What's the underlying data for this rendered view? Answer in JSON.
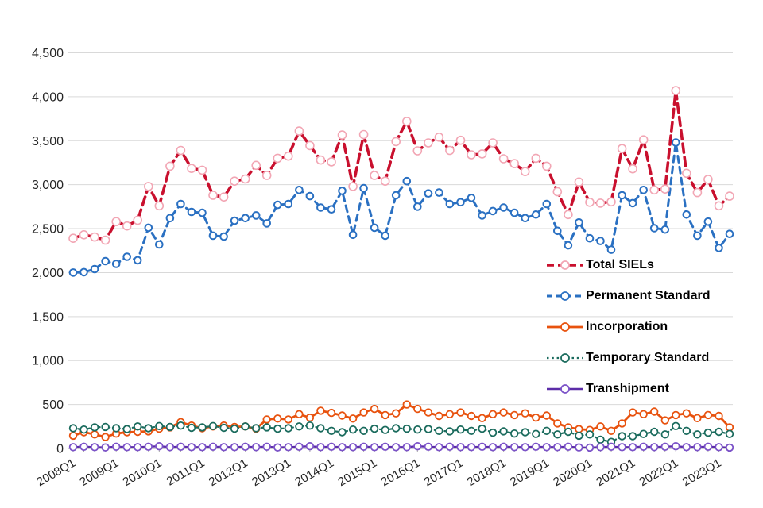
{
  "chart_data": {
    "type": "line",
    "title": "",
    "xlabel": "",
    "ylabel": "",
    "ylim": [
      0,
      4500
    ],
    "y_tick_step": 500,
    "y_tick_labels": [
      "0",
      "500",
      "1,000",
      "1,500",
      "2,000",
      "2,500",
      "3,000",
      "3,500",
      "4,000",
      "4,500"
    ],
    "x_tick_labels": [
      "2008Q1",
      "2009Q1",
      "2010Q1",
      "2011Q1",
      "2012Q1",
      "2013Q1",
      "2014Q1",
      "2015Q1",
      "2016Q1",
      "2017Q1",
      "2018Q1",
      "2019Q1",
      "2020Q1",
      "2021Q1",
      "2022Q1",
      "2023Q1"
    ],
    "x_tick_every": 4,
    "points_count": 62,
    "grid": true,
    "legend_position": "inside-right",
    "series": [
      {
        "name": "Total SIELs",
        "color": "#c9102e",
        "marker_color": "#f2a6b4",
        "dash": "long-dash",
        "width": 3.6,
        "values": [
          2390,
          2430,
          2405,
          2370,
          2580,
          2530,
          2595,
          2980,
          2760,
          3210,
          3390,
          3185,
          3165,
          2880,
          2860,
          3040,
          3065,
          3220,
          3105,
          3300,
          3325,
          3610,
          3445,
          3280,
          3260,
          3565,
          2980,
          3570,
          3105,
          3040,
          3490,
          3720,
          3385,
          3475,
          3540,
          3390,
          3505,
          3340,
          3350,
          3475,
          3295,
          3240,
          3150,
          3300,
          3210,
          2920,
          2660,
          3030,
          2800,
          2790,
          2805,
          3410,
          3180,
          3510,
          2940,
          2950,
          4070,
          3130,
          2910,
          3060,
          2760,
          2870
        ]
      },
      {
        "name": "Permanent Standard",
        "color": "#2a70c2",
        "marker_color": "#2a70c2",
        "dash": "dash",
        "width": 3,
        "values": [
          2000,
          2005,
          2040,
          2130,
          2100,
          2180,
          2140,
          2510,
          2320,
          2620,
          2780,
          2690,
          2680,
          2420,
          2410,
          2590,
          2620,
          2650,
          2560,
          2770,
          2780,
          2940,
          2870,
          2740,
          2720,
          2930,
          2430,
          2960,
          2510,
          2420,
          2880,
          3040,
          2750,
          2900,
          2910,
          2780,
          2800,
          2850,
          2650,
          2700,
          2740,
          2680,
          2620,
          2660,
          2780,
          2475,
          2310,
          2570,
          2390,
          2360,
          2260,
          2880,
          2790,
          2940,
          2505,
          2490,
          3480,
          2660,
          2420,
          2580,
          2280,
          2440
        ]
      },
      {
        "name": "Incorporation",
        "color": "#e8520e",
        "marker_color": "#e8520e",
        "dash": "solid",
        "width": 2.8,
        "values": [
          145,
          185,
          160,
          130,
          170,
          185,
          190,
          195,
          225,
          240,
          300,
          260,
          230,
          250,
          260,
          245,
          250,
          225,
          330,
          340,
          330,
          390,
          350,
          430,
          405,
          375,
          340,
          410,
          450,
          380,
          400,
          500,
          450,
          410,
          370,
          390,
          410,
          370,
          345,
          390,
          410,
          380,
          400,
          350,
          375,
          285,
          240,
          220,
          210,
          250,
          200,
          285,
          410,
          390,
          420,
          320,
          380,
          400,
          345,
          380,
          370,
          240
        ]
      },
      {
        "name": "Temporary Standard",
        "color": "#1a6b5d",
        "marker_color": "#1a6b5d",
        "dash": "dotted",
        "width": 2.2,
        "values": [
          230,
          215,
          240,
          245,
          230,
          220,
          250,
          230,
          255,
          245,
          260,
          235,
          240,
          255,
          235,
          225,
          250,
          230,
          240,
          225,
          230,
          250,
          260,
          230,
          200,
          185,
          215,
          200,
          225,
          210,
          230,
          225,
          215,
          220,
          200,
          195,
          215,
          200,
          225,
          180,
          195,
          170,
          185,
          165,
          200,
          160,
          190,
          145,
          160,
          100,
          75,
          140,
          140,
          165,
          190,
          160,
          255,
          200,
          160,
          180,
          190,
          165
        ]
      },
      {
        "name": "Transhipment",
        "color": "#5c2da8",
        "marker_color": "#7b52c8",
        "dash": "solid",
        "width": 2.4,
        "values": [
          15,
          20,
          15,
          12,
          20,
          15,
          15,
          20,
          25,
          15,
          20,
          15,
          15,
          20,
          15,
          15,
          20,
          15,
          20,
          12,
          15,
          20,
          25,
          15,
          20,
          15,
          15,
          20,
          15,
          20,
          15,
          15,
          25,
          20,
          15,
          20,
          15,
          15,
          20,
          15,
          20,
          15,
          15,
          20,
          15,
          15,
          20,
          12,
          10,
          15,
          20,
          15,
          15,
          20,
          15,
          20,
          25,
          15,
          15,
          20,
          15,
          10
        ]
      }
    ],
    "colors": {
      "gridline": "#d9d9d9",
      "axis_line": "#bfbfbf",
      "tick_mark": "#a6a6a6",
      "label_text": "#262626"
    }
  }
}
